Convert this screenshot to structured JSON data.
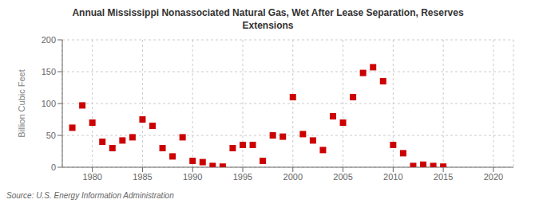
{
  "chart_data": {
    "type": "scatter",
    "title": "Annual Mississippi Nonassociated Natural Gas, Wet After Lease Separation, Reserves\nExtensions",
    "ylabel": "Billion Cubic Feet",
    "annotations": [
      "Source: U.S. Energy Information Administration"
    ],
    "color": "#cc0000",
    "marker": "square",
    "grid": true,
    "xlim": [
      1977,
      2022
    ],
    "ylim": [
      0,
      200
    ],
    "xticks": [
      1980,
      1985,
      1990,
      1995,
      2000,
      2005,
      2010,
      2015,
      2020
    ],
    "yticks": [
      0,
      50,
      100,
      150,
      200
    ],
    "x": [
      1978,
      1979,
      1980,
      1981,
      1982,
      1983,
      1984,
      1985,
      1986,
      1987,
      1988,
      1989,
      1990,
      1991,
      1992,
      1993,
      1994,
      1995,
      1996,
      1997,
      1998,
      1999,
      2000,
      2001,
      2002,
      2003,
      2004,
      2005,
      2006,
      2007,
      2008,
      2009,
      2010,
      2011,
      2012,
      2013,
      2014,
      2015
    ],
    "values": [
      62,
      97,
      70,
      40,
      30,
      42,
      47,
      75,
      65,
      30,
      17,
      47,
      10,
      8,
      2,
      1,
      30,
      35,
      35,
      10,
      50,
      48,
      110,
      52,
      42,
      27,
      80,
      70,
      110,
      148,
      157,
      135,
      35,
      22,
      2,
      4,
      2,
      1
    ]
  }
}
